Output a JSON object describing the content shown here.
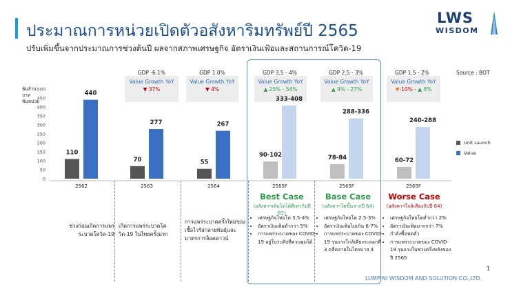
{
  "header": {
    "title": "ประมาณการหน่วยเปิดตัวอสังหาริมทรัพย์ปี 2565",
    "subtitle": "ปรับเพิ่มขึ้นจากประมาณการช่วงต้นปี ผลจากสภาพเศรษฐกิจ อัตราเงินเฟ้อและสถานการณ์โควิด-19"
  },
  "logo": {
    "line1": "LWS",
    "line2": "WISDOM"
  },
  "source": "Source : BOT",
  "unit_label": "พันล้านบาท\nพันหน่วย",
  "gdp": [
    {
      "label": "GDP -6.1%",
      "vg_title": "Value Growth YoY",
      "arrow1": "down",
      "text1": "37%",
      "arrow2": "",
      "text2": ""
    },
    {
      "label": "GDP 1.0%",
      "vg_title": "Value Growth YoY",
      "arrow1": "down",
      "text1": "4%",
      "arrow2": "",
      "text2": ""
    },
    {
      "label": "GDP 3.5 - 4%",
      "vg_title": "Value Growth YoY",
      "arrow1": "up",
      "text1": "25% - 54%",
      "arrow2": "",
      "text2": ""
    },
    {
      "label": "GDP 2.5 - 3%",
      "vg_title": "Value Growth YoY",
      "arrow1": "up",
      "text1": "9% - 27%",
      "arrow2": "",
      "text2": ""
    },
    {
      "label": "GDP 1.5 - 2%",
      "vg_title": "Value Growth YoY",
      "arrow1": "down-orange",
      "text1": "-10% -",
      "arrow2": "up",
      "text2": "8%"
    }
  ],
  "chart_data": {
    "type": "bar",
    "categories": [
      "2562",
      "2563",
      "2564",
      "2565F",
      "2565F",
      "2565F"
    ],
    "series": [
      {
        "name": "Unit Launch",
        "values": [
          110,
          70,
          55,
          96,
          81,
          66
        ],
        "labels": [
          "110",
          "70",
          "55",
          "90-102",
          "78-84",
          "60-72"
        ],
        "colors": [
          "#555555",
          "#555555",
          "#555555",
          "#bfbfbf",
          "#bfbfbf",
          "#bfbfbf"
        ]
      },
      {
        "name": "Value",
        "values": [
          440,
          277,
          267,
          408,
          336,
          288
        ],
        "labels": [
          "440",
          "277",
          "267",
          "333-408",
          "288-336",
          "240-288"
        ],
        "colors": [
          "#3a6fc4",
          "#3a6fc4",
          "#3a6fc4",
          "#c5d5ef",
          "#c5d5ef",
          "#c5d5ef"
        ]
      }
    ],
    "y_ticks": [
      0,
      50,
      100,
      150,
      200,
      250,
      300,
      350,
      400,
      450,
      500
    ],
    "ylim": [
      0,
      500
    ],
    "grid": false,
    "legend": "right"
  },
  "cases": [
    {
      "title": "Best Case",
      "sub": "(อสังหาฯเติบโตได้ดีเท่ากับปี 61)",
      "color": "#2e9c4b",
      "bullets": [
        "เศรษฐกิจไทยโต 3.5-4%",
        "อัตราเงินเฟ้อต่ำกว่า 5%",
        "การแพร่ระบาดของ COVID-19 อยู่ในระดับที่ควบคุมได้"
      ]
    },
    {
      "title": "Base Case",
      "sub": "(อสังหาฯโตขึ้นจากปี 64)",
      "color": "#2e9c4b",
      "bullets": [
        "เศรษฐกิจไทยโต 2.5-3%",
        "อัตราเงินเฟ้อไม่เกิน 6-7%",
        "การแพร่ระบาดของ COVID-19 รุนแรงใกล้เคียงระลอกที่ 3 คลี่คลายในไตรมาส 4"
      ]
    },
    {
      "title": "Worse Case",
      "sub": "(อสังหาฯใกล้เคียงกับปี 64)",
      "color": "#c00000",
      "bullets": [
        "เศรษฐกิจไทยโตต่ำกว่า 2%",
        "อัตราเงินเฟ้อมากกว่า 7%",
        "กำลังซื้อหดตัว",
        "การแพร่ระบาดของ COVID-19 รุนแรงในช่วงครึ่งหลังของปี 2565"
      ]
    }
  ],
  "notes": [
    "ช่วงก่อนเกิดการแพร่ระบาดโควิด-19",
    "เกิดการแพร่ระบาดโควิด-19 ในไทยครั้งแรก",
    "การแพร่ระบาดครั้งใหม่ของเชื้อไวรัสกลายพันธุ์และมาตรการล็อคดาวน์"
  ],
  "footer": "LUMPINI WISDOM AND SOLUTION CO.,LTD.",
  "page_number": "1"
}
